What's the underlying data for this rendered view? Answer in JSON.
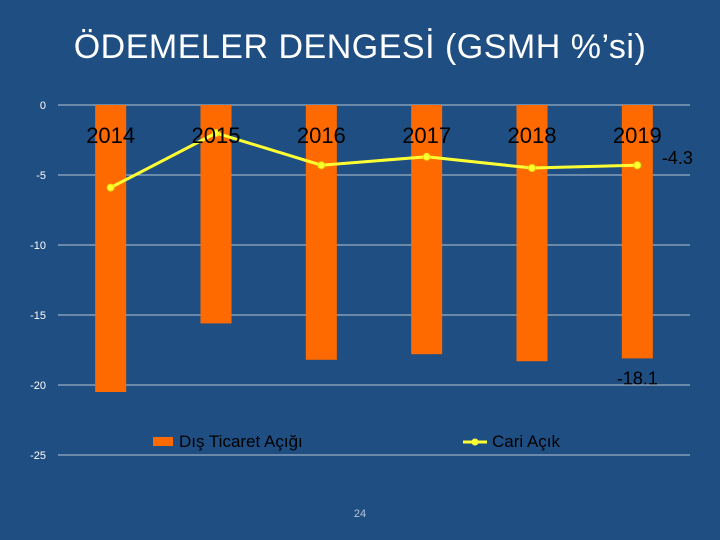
{
  "slide": {
    "title": "ÖDEMELER DENGESİ (GSMH %’si)",
    "page_number": "24"
  },
  "colors": {
    "background": "#1f4e82",
    "bar": "#ff6a00",
    "line": "#ffff33",
    "grid": "#ffffff",
    "text": "#ffffff"
  },
  "chart_data": {
    "type": "bar",
    "title": "ÖDEMELER DENGESİ (GSMH %’si)",
    "categories": [
      "2014",
      "2015",
      "2016",
      "2017",
      "2018",
      "2019"
    ],
    "series": [
      {
        "name": "Dış Ticaret Açığı",
        "kind": "bar",
        "values": [
          -20.5,
          -15.6,
          -18.2,
          -17.8,
          -18.3,
          -18.1
        ]
      },
      {
        "name": "Cari Açık",
        "kind": "line",
        "values": [
          -5.9,
          -2.0,
          -4.3,
          -3.7,
          -4.5,
          -4.3
        ]
      }
    ],
    "yticks": [
      0,
      -5,
      -10,
      -15,
      -20,
      -25
    ],
    "ylim": [
      -25,
      0
    ],
    "data_labels": [
      {
        "series": "Dış Ticaret Açığı",
        "category": "2019",
        "text": "-18.1"
      },
      {
        "series": "Cari Açık",
        "category": "2019",
        "text": "-4.3"
      }
    ],
    "legend": [
      "Dış Ticaret Açığı",
      "Cari Açık"
    ],
    "grid": true
  }
}
